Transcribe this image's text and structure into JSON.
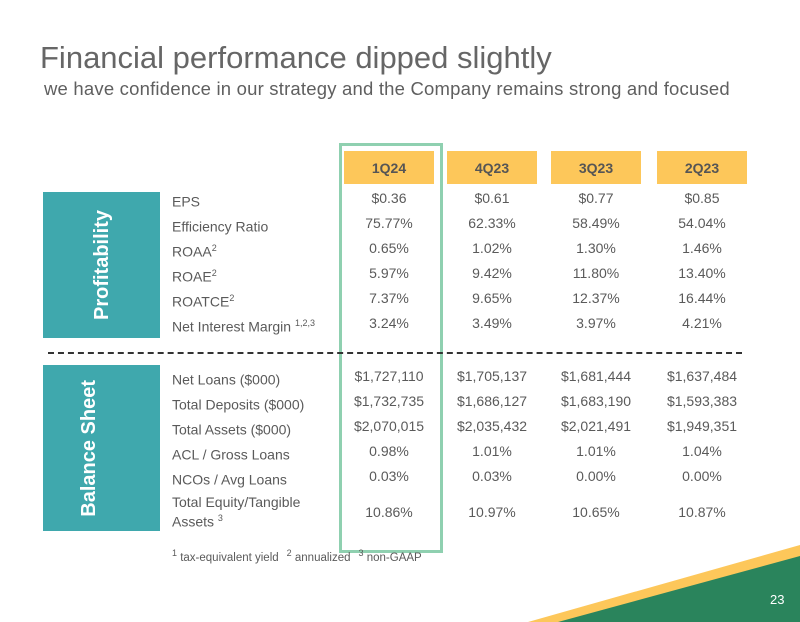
{
  "title": "Financial performance dipped slightly",
  "subtitle": "we have confidence in our strategy and the Company remains strong and focused",
  "columns": [
    "1Q24",
    "4Q23",
    "3Q23",
    "2Q23"
  ],
  "sections": [
    {
      "name": "Profitability",
      "rows": [
        {
          "label": "EPS",
          "sup": "",
          "values": [
            "$0.36",
            "$0.61",
            "$0.77",
            "$0.85"
          ]
        },
        {
          "label": "Efficiency Ratio",
          "sup": "",
          "values": [
            "75.77%",
            "62.33%",
            "58.49%",
            "54.04%"
          ]
        },
        {
          "label": "ROAA",
          "sup": "2",
          "values": [
            "0.65%",
            "1.02%",
            "1.30%",
            "1.46%"
          ]
        },
        {
          "label": "ROAE",
          "sup": "2",
          "values": [
            "5.97%",
            "9.42%",
            "11.80%",
            "13.40%"
          ]
        },
        {
          "label": "ROATCE",
          "sup": "2",
          "values": [
            "7.37%",
            "9.65%",
            "12.37%",
            "16.44%"
          ]
        },
        {
          "label": "Net Interest Margin ",
          "sup": "1,2,3",
          "values": [
            "3.24%",
            "3.49%",
            "3.97%",
            "4.21%"
          ]
        }
      ]
    },
    {
      "name": "Balance Sheet",
      "rows": [
        {
          "label": "Net Loans ($000)",
          "sup": "",
          "values": [
            "$1,727,110",
            "$1,705,137",
            "$1,681,444",
            "$1,637,484"
          ]
        },
        {
          "label": "Total Deposits ($000)",
          "sup": "",
          "values": [
            "$1,732,735",
            "$1,686,127",
            "$1,683,190",
            "$1,593,383"
          ]
        },
        {
          "label": "Total Assets ($000)",
          "sup": "",
          "values": [
            "$2,070,015",
            "$2,035,432",
            "$2,021,491",
            "$1,949,351"
          ]
        },
        {
          "label": "ACL / Gross Loans",
          "sup": "",
          "values": [
            "0.98%",
            "1.01%",
            "1.01%",
            "1.04%"
          ]
        },
        {
          "label": "NCOs / Avg Loans",
          "sup": "",
          "values": [
            "0.03%",
            "0.03%",
            "0.00%",
            "0.00%"
          ]
        },
        {
          "label": "Total Equity/Tangible Assets ",
          "sup": "3",
          "values": [
            "10.86%",
            "10.97%",
            "10.65%",
            "10.87%"
          ]
        }
      ]
    }
  ],
  "footnotes": [
    {
      "num": "1",
      "text": " tax-equivalent yield"
    },
    {
      "num": "2",
      "text": " annualized"
    },
    {
      "num": "3",
      "text": " non-GAAP"
    }
  ],
  "page_number": "23",
  "colors": {
    "header": "#fdc75a",
    "section": "#3fa8ad",
    "highlight": "#8fd0b0",
    "green": "#2a845c",
    "yellow": "#fdc75a"
  }
}
